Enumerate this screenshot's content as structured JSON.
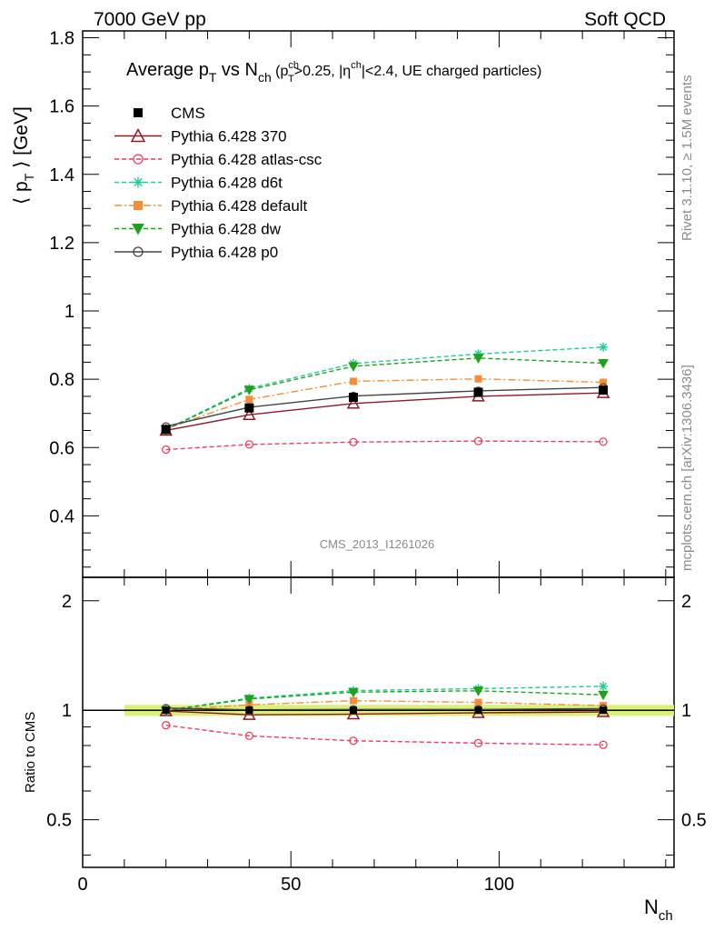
{
  "header": {
    "left": "7000 GeV pp",
    "right": "Soft QCD"
  },
  "title": {
    "prefix": "Average p",
    "prefix_sub": "T",
    "mid": " vs N",
    "mid_sub": "ch",
    "cond_open": " (p",
    "cond_sup": "ch",
    "cond_sub": "T",
    "cond_mid": ">0.25, |η",
    "cond_eta_sup": "ch",
    "cond_rest": "|<2.4, UE charged particles)"
  },
  "side_labels": {
    "rivet": "Rivet 3.1.10, ≥ 1.5M events",
    "mcplots": "mcplots.cern.ch [arXiv:1306.3436]"
  },
  "watermark": "CMS_2013_I1261026",
  "chart_data": {
    "type": "line",
    "xlabel": "N",
    "xlabel_sub": "ch",
    "ylabel": "⟨ p",
    "ylabel_sub": "T",
    "ylabel_rest": " ⟩ [GeV]",
    "ratio_ylabel": "Ratio to CMS",
    "xlim": [
      0,
      142
    ],
    "ylim": [
      0.22,
      1.82
    ],
    "ratio_ylim": [
      0.37,
      2.32
    ],
    "ratio_log": true,
    "x_ticks": [
      0,
      50,
      100
    ],
    "y_ticks": [
      0.4,
      0.6,
      0.8,
      1,
      1.2,
      1.4,
      1.6,
      1.8
    ],
    "y_tick_labels": [
      "0.4",
      "0.6",
      "0.8",
      "1",
      "1.2",
      "1.4",
      "1.6",
      "1.8"
    ],
    "ratio_ticks": [
      0.5,
      1,
      2
    ],
    "ratio_tick_labels": [
      "0.5",
      "1",
      "2"
    ],
    "ratio_band": {
      "x": [
        10,
        142
      ],
      "half_width": 0.035,
      "color": "#d9f07a"
    },
    "x": [
      20,
      40,
      65,
      95,
      125
    ],
    "data": {
      "name": "CMS",
      "values": [
        0.653,
        0.716,
        0.747,
        0.762,
        0.768
      ]
    },
    "series": [
      {
        "name": "Pythia 6.428 370",
        "values": [
          0.65,
          0.696,
          0.729,
          0.75,
          0.76
        ],
        "color": "#8b1a2b",
        "dash": "",
        "marker": "triangle-open"
      },
      {
        "name": "Pythia 6.428 atlas-csc",
        "values": [
          0.594,
          0.609,
          0.616,
          0.619,
          0.617
        ],
        "color": "#e8405e",
        "dash": "5,3",
        "marker": "circle-open"
      },
      {
        "name": "Pythia 6.428 d6t",
        "values": [
          0.653,
          0.773,
          0.846,
          0.874,
          0.894
        ],
        "color": "#22c997",
        "dash": "5,3",
        "marker": "star"
      },
      {
        "name": "Pythia 6.428 default",
        "values": [
          0.655,
          0.741,
          0.794,
          0.801,
          0.791
        ],
        "color": "#f58d3a",
        "dash": "8,3,2,3",
        "marker": "square"
      },
      {
        "name": "Pythia 6.428 dw",
        "values": [
          0.652,
          0.769,
          0.838,
          0.862,
          0.847
        ],
        "color": "#1fa01f",
        "dash": "5,3",
        "marker": "triangle-down"
      },
      {
        "name": "Pythia 6.428 p0",
        "values": [
          0.662,
          0.718,
          0.751,
          0.766,
          0.776
        ],
        "color": "#444444",
        "dash": "",
        "marker": "circle-open"
      }
    ],
    "legend_position": "top-left"
  }
}
